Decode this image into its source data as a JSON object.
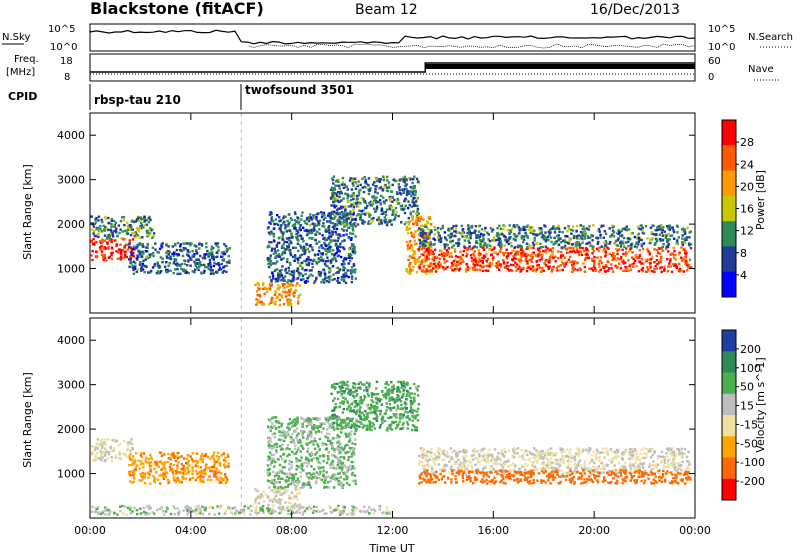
{
  "header": {
    "title": "Blackstone (fitACF)",
    "beam": "Beam 12",
    "date": "16/Dec/2013"
  },
  "noise_panel": {
    "left_label": "N.Sky",
    "left_ticks": [
      "10^5",
      "10^0"
    ],
    "right_ticks": [
      "10^5",
      "10^0"
    ],
    "right_label": "N.Search"
  },
  "freq_panel": {
    "left_label_1": "Freq.",
    "left_label_2": "[MHz]",
    "left_ticks": [
      "18",
      "8"
    ],
    "right_ticks": [
      "60",
      "0"
    ],
    "right_label": "Nave"
  },
  "cpid": {
    "label": "CPID",
    "modes": [
      {
        "name": "rbsp-tau 210",
        "start_hour": 0
      },
      {
        "name": "twofsound 3501",
        "start_hour": 6
      }
    ]
  },
  "power_colorbar": {
    "label": "Power [dB]",
    "ticks": [
      "28",
      "24",
      "20",
      "16",
      "12",
      "8",
      "4"
    ],
    "colors": [
      "#ff0000",
      "#ff5a00",
      "#ff9a00",
      "#c8c800",
      "#2e8b57",
      "#1e3c96",
      "#0000ff"
    ]
  },
  "velocity_colorbar": {
    "label": "Velocity [m s^-1]",
    "ticks": [
      "200",
      "100",
      "50",
      "15",
      "-15",
      "-50",
      "-100",
      "-200"
    ],
    "colors": [
      "#1f3fa0",
      "#2e8b57",
      "#4caf50",
      "#bdbdbd",
      "#f0e0a0",
      "#ffa500",
      "#ff6a00",
      "#ff0000"
    ]
  },
  "axes": {
    "ylabel": "Slant Range [km]",
    "xlabel": "Time UT",
    "yticks": [
      "4000",
      "3000",
      "2000",
      "1000"
    ],
    "xticks": [
      "00:00",
      "04:00",
      "08:00",
      "12:00",
      "16:00",
      "20:00",
      "00:00"
    ]
  },
  "chart_data": {
    "type": "heatmap",
    "title": "Blackstone (fitACF)",
    "xlabel": "Time UT",
    "ylabel": "Slant Range [km]",
    "xlim_hours": [
      0,
      24
    ],
    "ylim_km": [
      0,
      4500
    ],
    "panels": [
      {
        "name": "Power [dB]",
        "clim": [
          0,
          30
        ],
        "echo_regions": [
          {
            "t_start": 0.0,
            "t_end": 1.7,
            "range_low": 1200,
            "range_high": 1700,
            "value": 27
          },
          {
            "t_start": 0.0,
            "t_end": 2.5,
            "range_low": 1700,
            "range_high": 2200,
            "value": 10
          },
          {
            "t_start": 1.5,
            "t_end": 5.5,
            "range_low": 900,
            "range_high": 1600,
            "value": 8
          },
          {
            "t_start": 6.5,
            "t_end": 8.3,
            "range_low": 200,
            "range_high": 700,
            "value": 20
          },
          {
            "t_start": 7.0,
            "t_end": 10.5,
            "range_low": 700,
            "range_high": 2300,
            "value": 8
          },
          {
            "t_start": 9.5,
            "t_end": 13.0,
            "range_low": 2000,
            "range_high": 3100,
            "value": 9
          },
          {
            "t_start": 12.5,
            "t_end": 13.5,
            "range_low": 900,
            "range_high": 2200,
            "value": 20
          },
          {
            "t_start": 13.0,
            "t_end": 23.8,
            "range_low": 950,
            "range_high": 1500,
            "value": 25
          },
          {
            "t_start": 13.0,
            "t_end": 23.8,
            "range_low": 1500,
            "range_high": 2000,
            "value": 9
          }
        ]
      },
      {
        "name": "Velocity [m s^-1]",
        "clim": [
          -200,
          200
        ],
        "echo_regions": [
          {
            "t_start": 0.0,
            "t_end": 1.7,
            "range_low": 1300,
            "range_high": 1800,
            "value": 0
          },
          {
            "t_start": 1.5,
            "t_end": 5.5,
            "range_low": 800,
            "range_high": 1500,
            "value": -60
          },
          {
            "t_start": 6.5,
            "t_end": 8.3,
            "range_low": 200,
            "range_high": 700,
            "value": 0
          },
          {
            "t_start": 7.0,
            "t_end": 10.5,
            "range_low": 700,
            "range_high": 2300,
            "value": 40
          },
          {
            "t_start": 9.5,
            "t_end": 13.0,
            "range_low": 2000,
            "range_high": 3100,
            "value": 60
          },
          {
            "t_start": 13.0,
            "t_end": 23.8,
            "range_low": 1000,
            "range_high": 1600,
            "value": 0
          },
          {
            "t_start": 13.0,
            "t_end": 23.8,
            "range_low": 800,
            "range_high": 1100,
            "value": -120
          },
          {
            "t_start": 0.0,
            "t_end": 12.0,
            "range_low": 100,
            "range_high": 300,
            "value": 20
          }
        ]
      }
    ]
  }
}
